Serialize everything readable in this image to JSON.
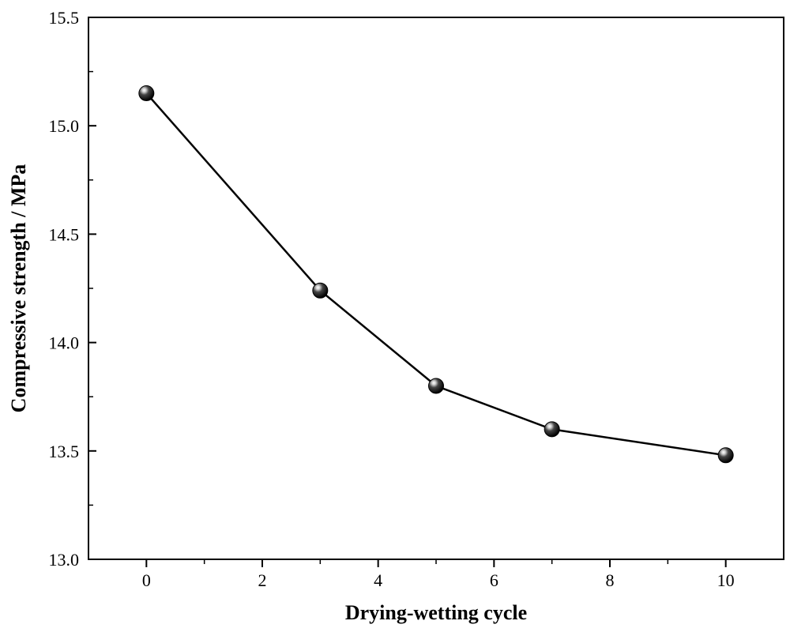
{
  "chart_data": {
    "type": "line",
    "title": "",
    "xlabel": "Drying-wetting cycle",
    "ylabel": "Compressive strength / MPa",
    "x": [
      0,
      3,
      5,
      7,
      10
    ],
    "series": [
      {
        "name": "Compressive strength",
        "values": [
          15.15,
          14.24,
          13.8,
          13.6,
          13.48
        ]
      }
    ],
    "xlim": [
      -1,
      11
    ],
    "ylim": [
      13.0,
      15.5
    ],
    "x_ticks": [
      "0",
      "2",
      "4",
      "6",
      "8",
      "10"
    ],
    "y_ticks": [
      "13.0",
      "13.5",
      "14.0",
      "14.5",
      "15.0",
      "15.5"
    ],
    "grid": false,
    "legend": "none",
    "colors": {
      "line": "#000000",
      "marker": "#111111",
      "axes": "#000000"
    }
  }
}
